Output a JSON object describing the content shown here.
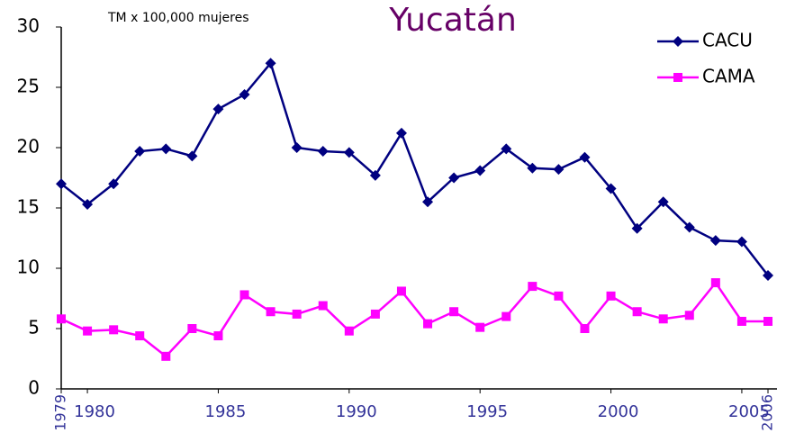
{
  "chart_data": {
    "type": "line",
    "title": "Yucatán",
    "annotation": "TM x 100,000 mujeres",
    "x": [
      1979,
      1980,
      1981,
      1982,
      1983,
      1984,
      1985,
      1986,
      1987,
      1988,
      1989,
      1990,
      1991,
      1992,
      1993,
      1994,
      1995,
      1996,
      1997,
      1998,
      1999,
      2000,
      2001,
      2002,
      2003,
      2004,
      2005,
      2006
    ],
    "series": [
      {
        "name": "CACU",
        "color": "#000080",
        "marker": "diamond",
        "values": [
          17.0,
          15.3,
          17.0,
          19.7,
          19.9,
          19.3,
          23.2,
          24.4,
          27.0,
          20.0,
          19.7,
          19.6,
          17.7,
          21.2,
          15.5,
          17.5,
          18.1,
          19.9,
          18.3,
          18.2,
          19.2,
          16.6,
          13.3,
          15.5,
          13.4,
          12.3,
          12.2,
          9.4
        ]
      },
      {
        "name": "CAMA",
        "color": "#ff00ff",
        "marker": "square",
        "values": [
          5.8,
          4.8,
          4.9,
          4.4,
          2.7,
          5.0,
          4.4,
          7.8,
          6.4,
          6.2,
          6.9,
          4.8,
          6.2,
          8.1,
          5.4,
          6.4,
          5.1,
          6.0,
          8.5,
          7.7,
          5.0,
          7.7,
          6.4,
          5.8,
          6.1,
          8.8,
          5.6,
          5.6
        ]
      }
    ],
    "xlim": [
      1979,
      2006
    ],
    "xticks": [
      1979,
      1980,
      1985,
      1990,
      1995,
      2000,
      2005,
      2006
    ],
    "ylim": [
      0,
      30
    ],
    "yticks": [
      0,
      5,
      10,
      15,
      20,
      25,
      30
    ],
    "grid": false,
    "legend": "upper right"
  }
}
